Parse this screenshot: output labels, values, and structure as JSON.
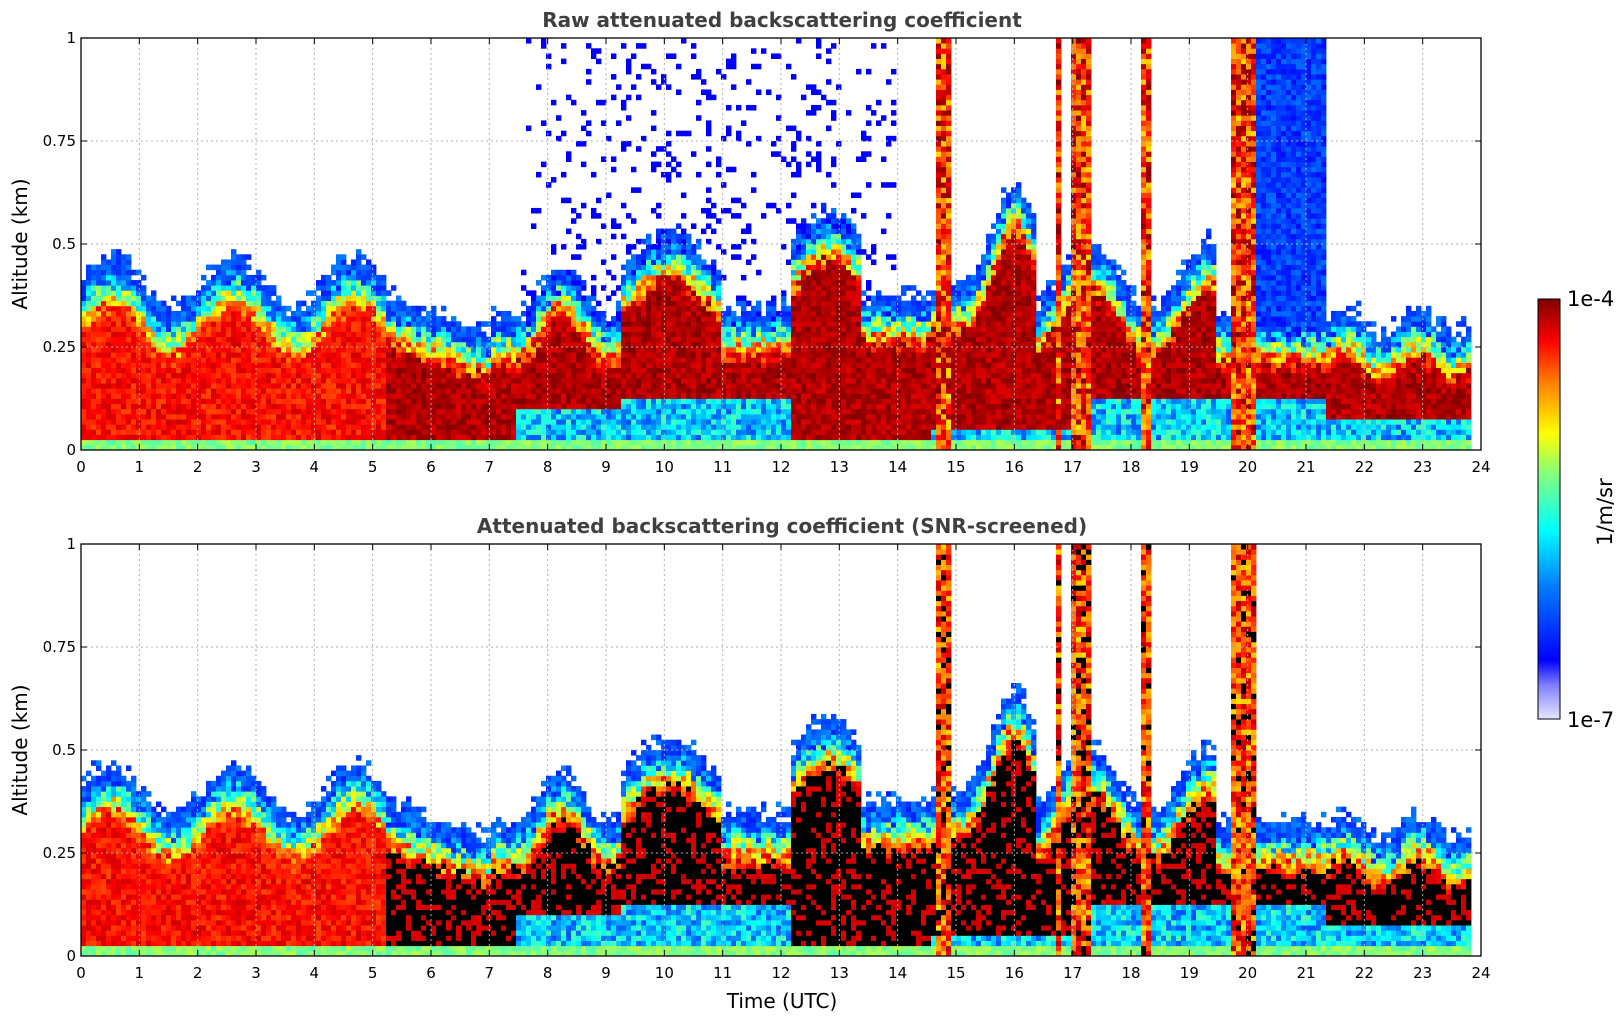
{
  "chart_data": [
    {
      "type": "heatmap",
      "title": "Raw attenuated backscattering coefficient",
      "xlabel": "",
      "ylabel": "Altitude (km)",
      "xlim": [
        0,
        24
      ],
      "ylim": [
        0,
        1
      ],
      "xticks": [
        "0",
        "1",
        "2",
        "3",
        "4",
        "5",
        "6",
        "7",
        "8",
        "9",
        "10",
        "11",
        "12",
        "13",
        "14",
        "15",
        "16",
        "17",
        "18",
        "19",
        "20",
        "21",
        "22",
        "23",
        "24"
      ],
      "yticks": [
        "0",
        "0.25",
        "0.5",
        "0.75",
        "1"
      ],
      "grid": true,
      "features": [
        {
          "name": "surface boundary layer aerosol",
          "x": [
            0,
            5.2
          ],
          "y_top": 0.35,
          "intensity": "high"
        },
        {
          "name": "dense low layer",
          "x": [
            5.2,
            7.5
          ],
          "y_top": 0.3,
          "intensity": "saturated"
        },
        {
          "name": "noisy upper region",
          "x": [
            7.5,
            13.5
          ],
          "y": [
            0.5,
            1.0
          ],
          "intensity": "low"
        },
        {
          "name": "vertical cloud columns",
          "x": [
            14.7,
            20.2
          ],
          "y": [
            0,
            1.0
          ],
          "intensity": "saturated"
        },
        {
          "name": "elevated layer",
          "x": [
            21.3,
            23.8
          ],
          "y": [
            0.08,
            0.28
          ],
          "intensity": "saturated"
        }
      ]
    },
    {
      "type": "heatmap",
      "title": "Attenuated backscattering coefficient (SNR-screened)",
      "xlabel": "Time (UTC)",
      "ylabel": "Altitude (km)",
      "xlim": [
        0,
        24
      ],
      "ylim": [
        0,
        1
      ],
      "xticks": [
        "0",
        "1",
        "2",
        "3",
        "4",
        "5",
        "6",
        "7",
        "8",
        "9",
        "10",
        "11",
        "12",
        "13",
        "14",
        "15",
        "16",
        "17",
        "18",
        "19",
        "20",
        "21",
        "22",
        "23",
        "24"
      ],
      "yticks": [
        "0",
        "0.25",
        "0.5",
        "0.75",
        "1"
      ],
      "grid": true,
      "features": [
        {
          "name": "screened boundary layer",
          "x": [
            0,
            5.2
          ],
          "y_top": 0.32,
          "intensity": "high"
        },
        {
          "name": "masked saturated core (black)",
          "x": [
            5.2,
            23.8
          ],
          "y": [
            0.05,
            0.3
          ],
          "intensity": "masked"
        },
        {
          "name": "vertical cloud columns",
          "x": [
            14.7,
            20.2
          ],
          "y": [
            0,
            1.0
          ],
          "intensity": "saturated"
        }
      ]
    }
  ],
  "colorbar": {
    "max_label": "1e-4",
    "min_label": "1e-7",
    "unit_label": "1/m/sr",
    "colormap": "jet"
  }
}
